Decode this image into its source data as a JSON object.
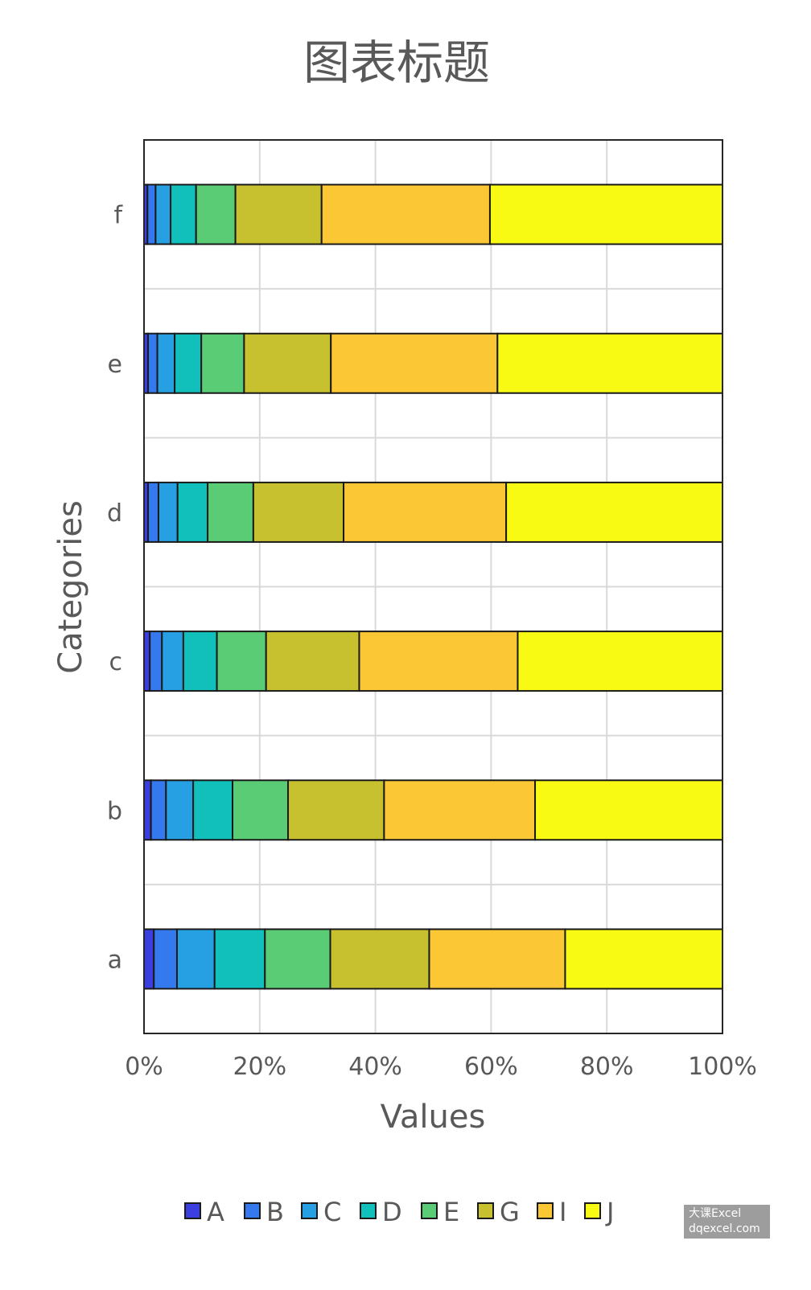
{
  "chart_data": {
    "type": "bar",
    "orientation": "horizontal",
    "stacked": "percent",
    "title": "图表标题",
    "xlabel": "Values",
    "ylabel": "Categories",
    "xlim": [
      0,
      100
    ],
    "x_ticks": [
      "0%",
      "20%",
      "40%",
      "60%",
      "80%",
      "100%"
    ],
    "grid": true,
    "legend_position": "bottom",
    "categories": [
      "a",
      "b",
      "c",
      "d",
      "e",
      "f"
    ],
    "series": [
      {
        "name": "A",
        "color": "#3b3fe0",
        "values": [
          1.7,
          1.2,
          1.0,
          0.7,
          0.7,
          0.6
        ]
      },
      {
        "name": "B",
        "color": "#3579ee",
        "values": [
          4.0,
          2.6,
          2.1,
          1.8,
          1.6,
          1.4
        ]
      },
      {
        "name": "C",
        "color": "#26a0e3",
        "values": [
          6.5,
          4.7,
          3.7,
          3.3,
          3.0,
          2.6
        ]
      },
      {
        "name": "D",
        "color": "#11bfbb",
        "values": [
          8.7,
          6.8,
          5.8,
          5.2,
          4.6,
          4.4
        ]
      },
      {
        "name": "E",
        "color": "#5bcc76",
        "values": [
          11.3,
          9.6,
          8.5,
          7.9,
          7.4,
          6.8
        ]
      },
      {
        "name": "G",
        "color": "#c8c12f",
        "values": [
          17.1,
          16.6,
          16.1,
          15.6,
          15.0,
          14.9
        ]
      },
      {
        "name": "I",
        "color": "#fcc735",
        "values": [
          23.5,
          26.1,
          27.4,
          28.1,
          28.8,
          29.1
        ]
      },
      {
        "name": "J",
        "color": "#f8fa14",
        "values": [
          27.2,
          32.4,
          35.4,
          37.4,
          38.9,
          40.2
        ]
      }
    ]
  },
  "watermark": {
    "line1": "大课Excel",
    "line2": "dqexcel.com"
  }
}
